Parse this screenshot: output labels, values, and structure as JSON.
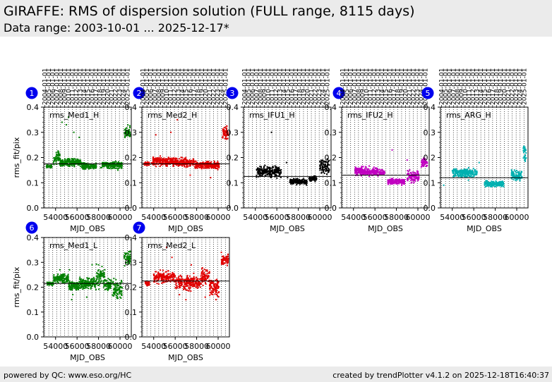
{
  "header": {
    "title": "GIRAFFE: RMS of dispersion solution (FULL range, 8115 days)",
    "subtitle": "Data range: 2003-10-01 ... 2025-12-17*"
  },
  "footer": {
    "left": "powered by QC: www.eso.org/HC",
    "right": "created by trendPlotter v4.1.2 on 2025-12-18T16:40:37"
  },
  "colors": {
    "green": "#008000",
    "red": "#e00000",
    "black": "#000000",
    "magenta": "#c000c0",
    "cyan": "#00b0b0",
    "badge": "#0000ee"
  },
  "chart_data": [
    {
      "type": "scatter",
      "badge": "1",
      "label": "rms_Med1_H",
      "color": "#008000",
      "xlabel": "MJD_OBS",
      "ylabel": "rms_fit/pix",
      "xlim": [
        52900,
        61050
      ],
      "ylim": [
        0,
        0.4
      ],
      "xticks": [
        54000,
        56000,
        58000,
        60000
      ],
      "yticks": [
        0.0,
        0.1,
        0.2,
        0.3,
        0.4
      ],
      "ref": 0.175,
      "segments": [
        [
          53150,
          53650,
          0.165,
          0.006
        ],
        [
          53800,
          54400,
          0.2,
          0.02
        ],
        [
          54400,
          56400,
          0.18,
          0.012
        ],
        [
          56400,
          57800,
          0.165,
          0.01
        ],
        [
          58300,
          58700,
          0.17,
          0.01
        ],
        [
          58700,
          60200,
          0.17,
          0.012
        ],
        [
          60400,
          60950,
          0.3,
          0.02
        ]
      ],
      "outliers": [
        [
          54600,
          0.34
        ],
        [
          55000,
          0.33
        ],
        [
          55200,
          0.36
        ],
        [
          55700,
          0.3
        ],
        [
          56200,
          0.28
        ],
        [
          59800,
          0.15
        ],
        [
          58200,
          0.16
        ],
        [
          56900,
          0.16
        ]
      ]
    },
    {
      "type": "scatter",
      "badge": "2",
      "label": "rms_Med2_H",
      "color": "#e00000",
      "xlabel": "MJD_OBS",
      "ylabel": "",
      "xlim": [
        52900,
        61050
      ],
      "ylim": [
        0,
        0.4
      ],
      "xticks": [
        54000,
        56000,
        58000,
        60000
      ],
      "yticks": [
        0.0,
        0.1,
        0.2,
        0.3,
        0.4
      ],
      "ref": 0.175,
      "segments": [
        [
          53100,
          53600,
          0.175,
          0.006
        ],
        [
          53800,
          56000,
          0.185,
          0.015
        ],
        [
          56000,
          57800,
          0.18,
          0.015
        ],
        [
          57800,
          60100,
          0.17,
          0.012
        ],
        [
          60400,
          60950,
          0.3,
          0.025
        ]
      ],
      "outliers": [
        [
          54200,
          0.29
        ],
        [
          55600,
          0.3
        ],
        [
          56200,
          0.35
        ],
        [
          57400,
          0.13
        ],
        [
          59300,
          0.12
        ]
      ]
    },
    {
      "type": "scatter",
      "badge": "3",
      "label": "rms_IFU1_H",
      "color": "#000000",
      "xlabel": "MJD_OBS",
      "ylabel": "",
      "xlim": [
        52900,
        61050
      ],
      "ylim": [
        0,
        0.4
      ],
      "xticks": [
        54000,
        56000,
        58000,
        60000
      ],
      "yticks": [
        0.0,
        0.1,
        0.2,
        0.3,
        0.4
      ],
      "ref": 0.125,
      "segments": [
        [
          54100,
          56400,
          0.145,
          0.02
        ],
        [
          57200,
          58800,
          0.105,
          0.01
        ],
        [
          59000,
          59700,
          0.115,
          0.01
        ],
        [
          60000,
          60900,
          0.165,
          0.025
        ]
      ],
      "outliers": [
        [
          55500,
          0.3
        ],
        [
          57000,
          0.12
        ],
        [
          56900,
          0.18
        ]
      ]
    },
    {
      "type": "scatter",
      "badge": "4",
      "label": "rms_IFU2_H",
      "color": "#c000c0",
      "xlabel": "MJD_OBS",
      "ylabel": "",
      "xlim": [
        52900,
        61050
      ],
      "ylim": [
        0,
        0.4
      ],
      "xticks": [
        54000,
        56000,
        58000,
        60000
      ],
      "yticks": [
        0.0,
        0.1,
        0.2,
        0.3,
        0.4
      ],
      "ref": 0.13,
      "segments": [
        [
          54100,
          56300,
          0.145,
          0.015
        ],
        [
          56400,
          56900,
          0.14,
          0.01
        ],
        [
          57200,
          58800,
          0.105,
          0.01
        ],
        [
          59000,
          60100,
          0.125,
          0.02
        ],
        [
          60300,
          60900,
          0.18,
          0.015
        ]
      ],
      "outliers": [
        [
          57600,
          0.23
        ],
        [
          58500,
          0.09
        ],
        [
          59000,
          0.19
        ]
      ]
    },
    {
      "type": "scatter",
      "badge": "5",
      "label": "rms_ARG_H",
      "color": "#00b0b0",
      "xlabel": "MJD_OBS",
      "ylabel": "",
      "xlim": [
        52900,
        61050
      ],
      "ylim": [
        0,
        0.4
      ],
      "xticks": [
        54000,
        56000,
        58000,
        60000
      ],
      "yticks": [
        0.0,
        0.1,
        0.2,
        0.3,
        0.4
      ],
      "ref": 0.12,
      "segments": [
        [
          54000,
          56300,
          0.14,
          0.015
        ],
        [
          57000,
          58800,
          0.095,
          0.01
        ],
        [
          59500,
          60500,
          0.13,
          0.02
        ],
        [
          60600,
          60900,
          0.22,
          0.03
        ]
      ],
      "outliers": [
        [
          53200,
          0.09
        ],
        [
          55500,
          0.11
        ],
        [
          56500,
          0.18
        ]
      ]
    },
    {
      "type": "scatter",
      "badge": "6",
      "label": "rms_Med1_L",
      "color": "#008000",
      "xlabel": "MJD_OBS",
      "ylabel": "rms_fit/pix",
      "xlim": [
        52900,
        61050
      ],
      "ylim": [
        0,
        0.4
      ],
      "xticks": [
        54000,
        56000,
        58000,
        60000
      ],
      "yticks": [
        0.0,
        0.1,
        0.2,
        0.3,
        0.4
      ],
      "ref": 0.215,
      "segments": [
        [
          53200,
          53800,
          0.215,
          0.006
        ],
        [
          53800,
          55200,
          0.235,
          0.015
        ],
        [
          55200,
          56200,
          0.205,
          0.015
        ],
        [
          56200,
          57800,
          0.215,
          0.02
        ],
        [
          57800,
          58600,
          0.24,
          0.04
        ],
        [
          58600,
          59200,
          0.21,
          0.02
        ],
        [
          59300,
          60200,
          0.19,
          0.03
        ],
        [
          60400,
          60950,
          0.32,
          0.025
        ]
      ],
      "outliers": [
        [
          54400,
          0.27
        ],
        [
          55300,
          0.27
        ],
        [
          55600,
          0.17
        ],
        [
          56900,
          0.16
        ],
        [
          57400,
          0.29
        ],
        [
          58000,
          0.29
        ],
        [
          55500,
          0.15
        ],
        [
          60000,
          0.16
        ]
      ]
    },
    {
      "type": "scatter",
      "badge": "7",
      "label": "rms_Med2_L",
      "color": "#e00000",
      "xlabel": "MJD_OBS",
      "ylabel": "",
      "xlim": [
        52900,
        61050
      ],
      "ylim": [
        0,
        0.4
      ],
      "xticks": [
        54000,
        56000,
        58000,
        60000
      ],
      "yticks": [
        0.0,
        0.1,
        0.2,
        0.3,
        0.4
      ],
      "ref": 0.225,
      "segments": [
        [
          53200,
          53600,
          0.215,
          0.008
        ],
        [
          54000,
          56000,
          0.24,
          0.02
        ],
        [
          56000,
          58400,
          0.22,
          0.025
        ],
        [
          58400,
          59200,
          0.245,
          0.03
        ],
        [
          59200,
          60100,
          0.2,
          0.03
        ],
        [
          60300,
          60950,
          0.31,
          0.02
        ]
      ],
      "outliers": [
        [
          55200,
          0.36
        ],
        [
          55700,
          0.32
        ],
        [
          57500,
          0.29
        ],
        [
          58800,
          0.16
        ],
        [
          59800,
          0.15
        ],
        [
          56400,
          0.17
        ],
        [
          57000,
          0.15
        ],
        [
          60300,
          0.34
        ]
      ]
    }
  ],
  "top_axis": {
    "tick_labels": [
      "2003-01-01",
      "2004-01-01",
      "2005-01-01",
      "2006-01-01",
      "2007-01-01",
      "2008-01-01",
      "2009-01-01",
      "2010-01-01",
      "2011-01-01",
      "2012-01-01",
      "2013-01-01",
      "2014-01-01",
      "2015-01-01",
      "2016-01-01",
      "2017-01-01",
      "2018-01-01",
      "2019-01-01",
      "2020-01-01",
      "2021-01-01",
      "2022-01-01",
      "2023-01-01",
      "2024-01-01",
      "2025-01-01"
    ],
    "tick_mjd": [
      52640,
      53005,
      53371,
      53736,
      54101,
      54466,
      54832,
      55197,
      55562,
      55927,
      56293,
      56658,
      57023,
      57388,
      57754,
      58119,
      58484,
      58849,
      59215,
      59580,
      59945,
      60310,
      60676
    ]
  }
}
